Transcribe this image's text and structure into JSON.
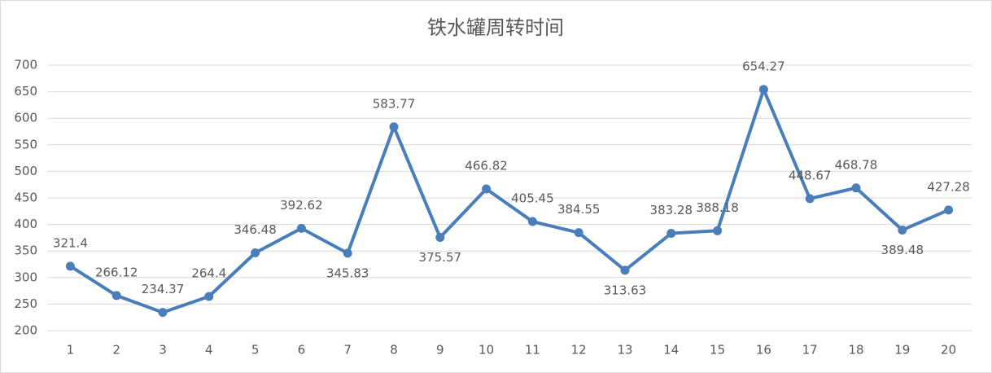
{
  "chart_data": {
    "type": "line",
    "title": "铁水罐周转时间",
    "categories": [
      "1",
      "2",
      "3",
      "4",
      "5",
      "6",
      "7",
      "8",
      "9",
      "10",
      "11",
      "12",
      "13",
      "14",
      "15",
      "16",
      "17",
      "18",
      "19",
      "20"
    ],
    "values": [
      321.4,
      266.12,
      234.37,
      264.4,
      346.48,
      392.62,
      345.83,
      583.77,
      375.57,
      466.82,
      405.45,
      384.55,
      313.63,
      383.28,
      388.18,
      654.27,
      448.67,
      468.78,
      389.48,
      427.28
    ],
    "color": "#4a7ebb",
    "ylim": [
      200,
      700
    ],
    "yticks": [
      200,
      250,
      300,
      350,
      400,
      450,
      500,
      550,
      600,
      650,
      700
    ],
    "grid": true
  }
}
